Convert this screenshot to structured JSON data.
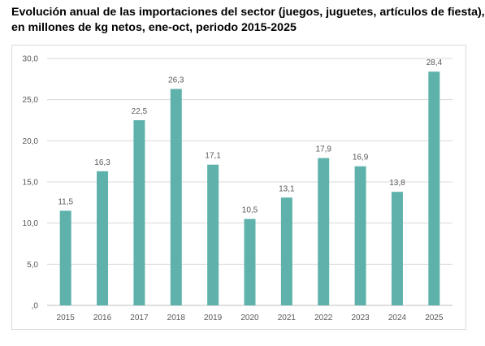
{
  "title_lines": [
    "Evolución anual de las importaciones del sector (juegos, juguetes, artículos de fiesta),",
    "en millones de kg netos, ene-oct, periodo 2015-2025"
  ],
  "colors": {
    "bar": "#5fb2ac",
    "grid": "#d9d9d9",
    "axis": "#bfbfbf",
    "text": "#595959"
  },
  "chart_data": {
    "type": "bar",
    "title": "Evolución anual de las importaciones del sector (juegos, juguetes, artículos de fiesta), en millones de kg netos, ene-oct, periodo 2015-2025",
    "categories": [
      "2015",
      "2016",
      "2017",
      "2018",
      "2019",
      "2020",
      "2021",
      "2022",
      "2023",
      "2024",
      "2025"
    ],
    "values": [
      11.5,
      16.3,
      22.5,
      26.3,
      17.1,
      10.5,
      13.1,
      17.9,
      16.9,
      13.8,
      28.4
    ],
    "value_labels": [
      "11,5",
      "16,3",
      "22,5",
      "26,3",
      "17,1",
      "10,5",
      "13,1",
      "17,9",
      "16,9",
      "13,8",
      "28,4"
    ],
    "y_ticks": [
      0,
      5,
      10,
      15,
      20,
      25,
      30
    ],
    "y_tick_labels": [
      ",0",
      "5,0",
      "10,0",
      "15,0",
      "20,0",
      "25,0",
      "30,0"
    ],
    "ylim": [
      0,
      30
    ],
    "xlabel": "",
    "ylabel": "",
    "grid": true,
    "legend": "none"
  }
}
